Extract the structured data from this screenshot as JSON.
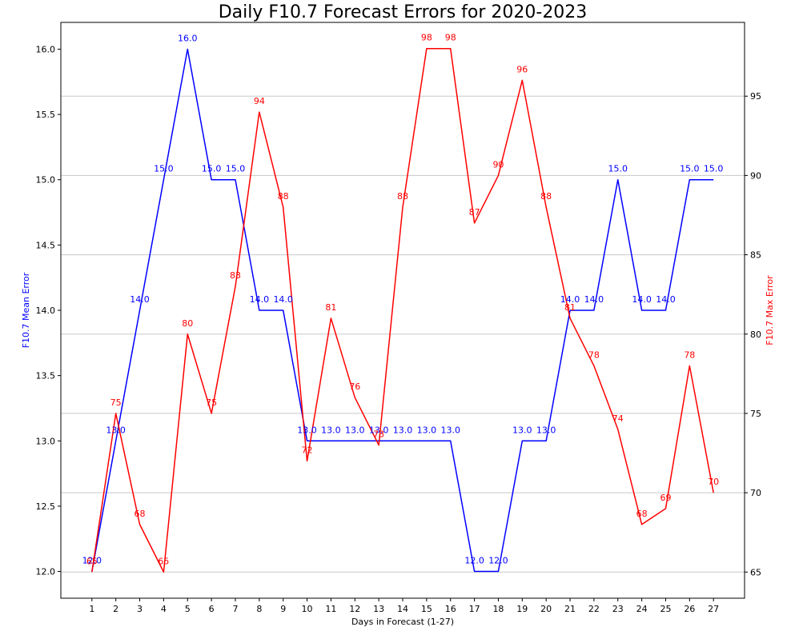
{
  "chart_data": {
    "type": "line",
    "title": "Daily F10.7 Forecast Errors for 2020-2023",
    "xlabel": "Days in Forecast (1-27)",
    "x": [
      1,
      2,
      3,
      4,
      5,
      6,
      7,
      8,
      9,
      10,
      11,
      12,
      13,
      14,
      15,
      16,
      17,
      18,
      19,
      20,
      21,
      22,
      23,
      24,
      25,
      26,
      27
    ],
    "xlim": [
      -0.3,
      28.3
    ],
    "left_axis": {
      "label": "F10.7 Mean Error",
      "ylim": [
        11.795,
        16.205
      ],
      "ticks": [
        12.0,
        12.5,
        13.0,
        13.5,
        14.0,
        14.5,
        15.0,
        15.5,
        16.0
      ],
      "tick_labels": [
        "12.0",
        "12.5",
        "13.0",
        "13.5",
        "14.0",
        "14.5",
        "15.0",
        "15.5",
        "16.0"
      ]
    },
    "right_axis": {
      "label": "F10.7 Max Error",
      "ylim": [
        63.35,
        99.65
      ],
      "ticks": [
        65,
        70,
        75,
        80,
        85,
        90,
        95
      ],
      "tick_labels": [
        "65",
        "70",
        "75",
        "80",
        "85",
        "90",
        "95"
      ],
      "grid": true
    },
    "series": [
      {
        "axis": "left",
        "color": "#0000ff",
        "values": [
          12.0,
          13.0,
          14.0,
          15.0,
          16.0,
          15.0,
          15.0,
          14.0,
          14.0,
          13.0,
          13.0,
          13.0,
          13.0,
          13.0,
          13.0,
          13.0,
          12.0,
          12.0,
          13.0,
          13.0,
          14.0,
          14.0,
          15.0,
          14.0,
          14.0,
          15.0,
          15.0
        ],
        "labels": [
          "12.0",
          "13.0",
          "14.0",
          "15.0",
          "16.0",
          "15.0",
          "15.0",
          "14.0",
          "14.0",
          "13.0",
          "13.0",
          "13.0",
          "13.0",
          "13.0",
          "13.0",
          "13.0",
          "12.0",
          "12.0",
          "13.0",
          "13.0",
          "14.0",
          "14.0",
          "15.0",
          "14.0",
          "14.0",
          "15.0",
          "15.0"
        ]
      },
      {
        "axis": "right",
        "color": "#ff0000",
        "values": [
          65,
          75,
          68,
          65,
          80,
          75,
          83,
          94,
          88,
          72,
          81,
          76,
          73,
          88,
          98,
          98,
          87,
          90,
          96,
          88,
          81,
          78,
          74,
          68,
          69,
          78,
          70
        ],
        "labels": [
          "65",
          "75",
          "68",
          "65",
          "80",
          "75",
          "83",
          "94",
          "88",
          "72",
          "81",
          "76",
          "73",
          "88",
          "98",
          "98",
          "87",
          "90",
          "96",
          "88",
          "81",
          "78",
          "74",
          "68",
          "69",
          "78",
          "70"
        ]
      }
    ]
  }
}
